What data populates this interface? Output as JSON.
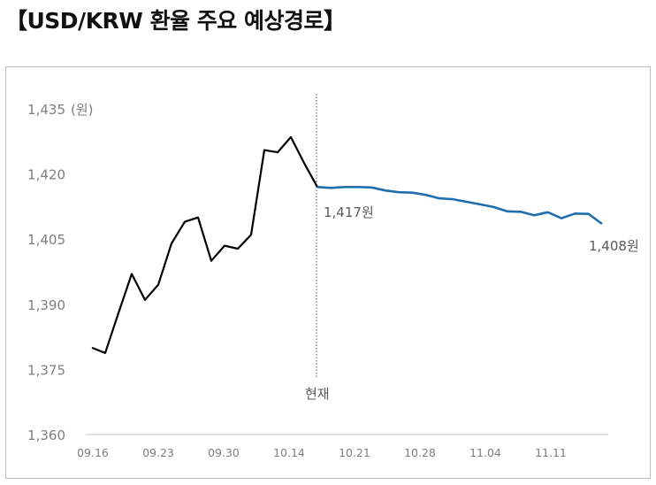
{
  "title": "【USD/KRW 환율 주요 예상경로】",
  "chart_data": {
    "type": "line",
    "title": "【USD/KRW 환율 주요 예상경로】",
    "y_unit": "(원)",
    "ylim": [
      1360,
      1435
    ],
    "y_ticks": [
      "1,360",
      "1,375",
      "1,390",
      "1,405",
      "1,420",
      "1,435"
    ],
    "x_ticks": [
      "09.16",
      "09.23",
      "09.30",
      "10.14",
      "10.21",
      "10.28",
      "11.04",
      "11.11"
    ],
    "series": [
      {
        "color": "#000000",
        "values": [
          1380,
          1378.8,
          1388,
          1397,
          1391,
          1394.5,
          1404,
          1409,
          1410,
          1400,
          1403.5,
          1402.8,
          1406,
          1425.5,
          1425,
          1428.5,
          1422.5,
          1417
        ]
      },
      {
        "color": "#1f6fae",
        "values": [
          1417,
          1416.8,
          1417,
          1417,
          1416.9,
          1416.2,
          1415.8,
          1415.7,
          1415.2,
          1414.4,
          1414.2,
          1413.6,
          1413,
          1412.4,
          1411.4,
          1411.3,
          1410.5,
          1411.2,
          1409.8,
          1410.9,
          1410.8,
          1408.5
        ]
      }
    ],
    "divider_label": "현재",
    "annotations": [
      "1,417원",
      "1,408원"
    ]
  }
}
